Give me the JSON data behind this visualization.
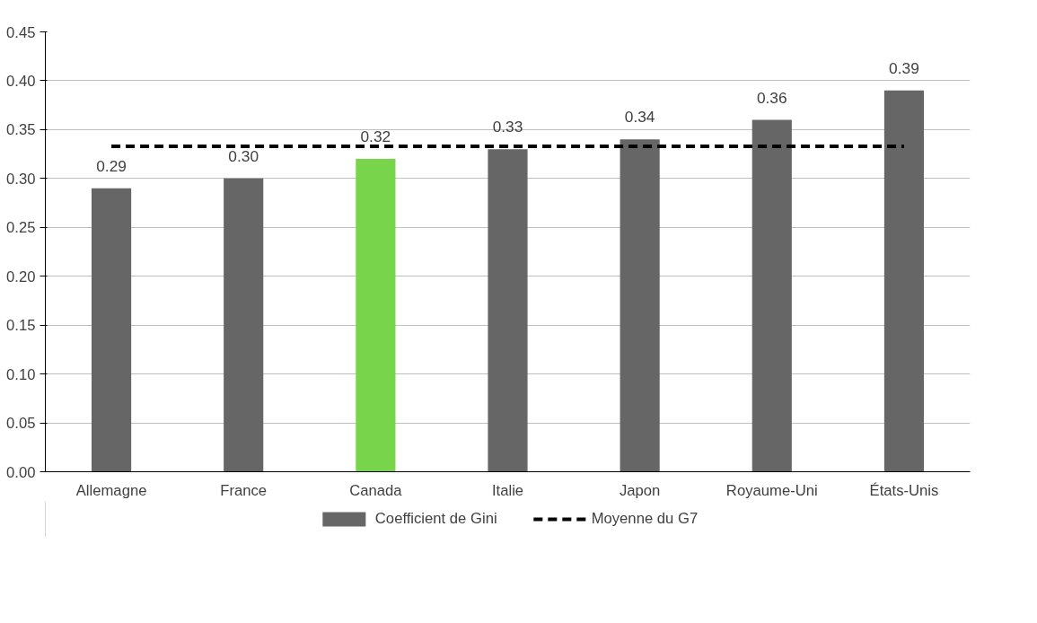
{
  "chart_data": {
    "type": "bar",
    "categories": [
      "Allemagne",
      "France",
      "Canada",
      "Italie",
      "Japon",
      "Royaume-Uni",
      "États-Unis"
    ],
    "series": [
      {
        "name": "Coefficient de Gini",
        "color": "#666666",
        "colors": [
          "#666666",
          "#666666",
          "#77d44b",
          "#666666",
          "#666666",
          "#666666",
          "#666666"
        ],
        "values": [
          0.29,
          0.3,
          0.32,
          0.33,
          0.34,
          0.36,
          0.39
        ],
        "value_labels": [
          "0.29",
          "0.30",
          "0.32",
          "0.33",
          "0.34",
          "0.36",
          "0.39"
        ]
      }
    ],
    "ref_lines": [
      {
        "axis": "y",
        "value": 0.333,
        "label": "Moyenne du G7",
        "color": "#000000",
        "line_style": "dashed"
      }
    ],
    "ylim": [
      0,
      0.45
    ],
    "yticks": [
      {
        "value": 0,
        "label": "0.00"
      },
      {
        "value": 0.05,
        "label": "0.05"
      },
      {
        "value": 0.1,
        "label": "0.10"
      },
      {
        "value": 0.15,
        "label": "0.15"
      },
      {
        "value": 0.2,
        "label": "0.20"
      },
      {
        "value": 0.25,
        "label": "0.25"
      },
      {
        "value": 0.3,
        "label": "0.30"
      },
      {
        "value": 0.35,
        "label": "0.35"
      },
      {
        "value": 0.4,
        "label": "0.40"
      },
      {
        "value": 0.45,
        "label": "0.45"
      }
    ],
    "grid": "y",
    "legend": "bottom"
  }
}
